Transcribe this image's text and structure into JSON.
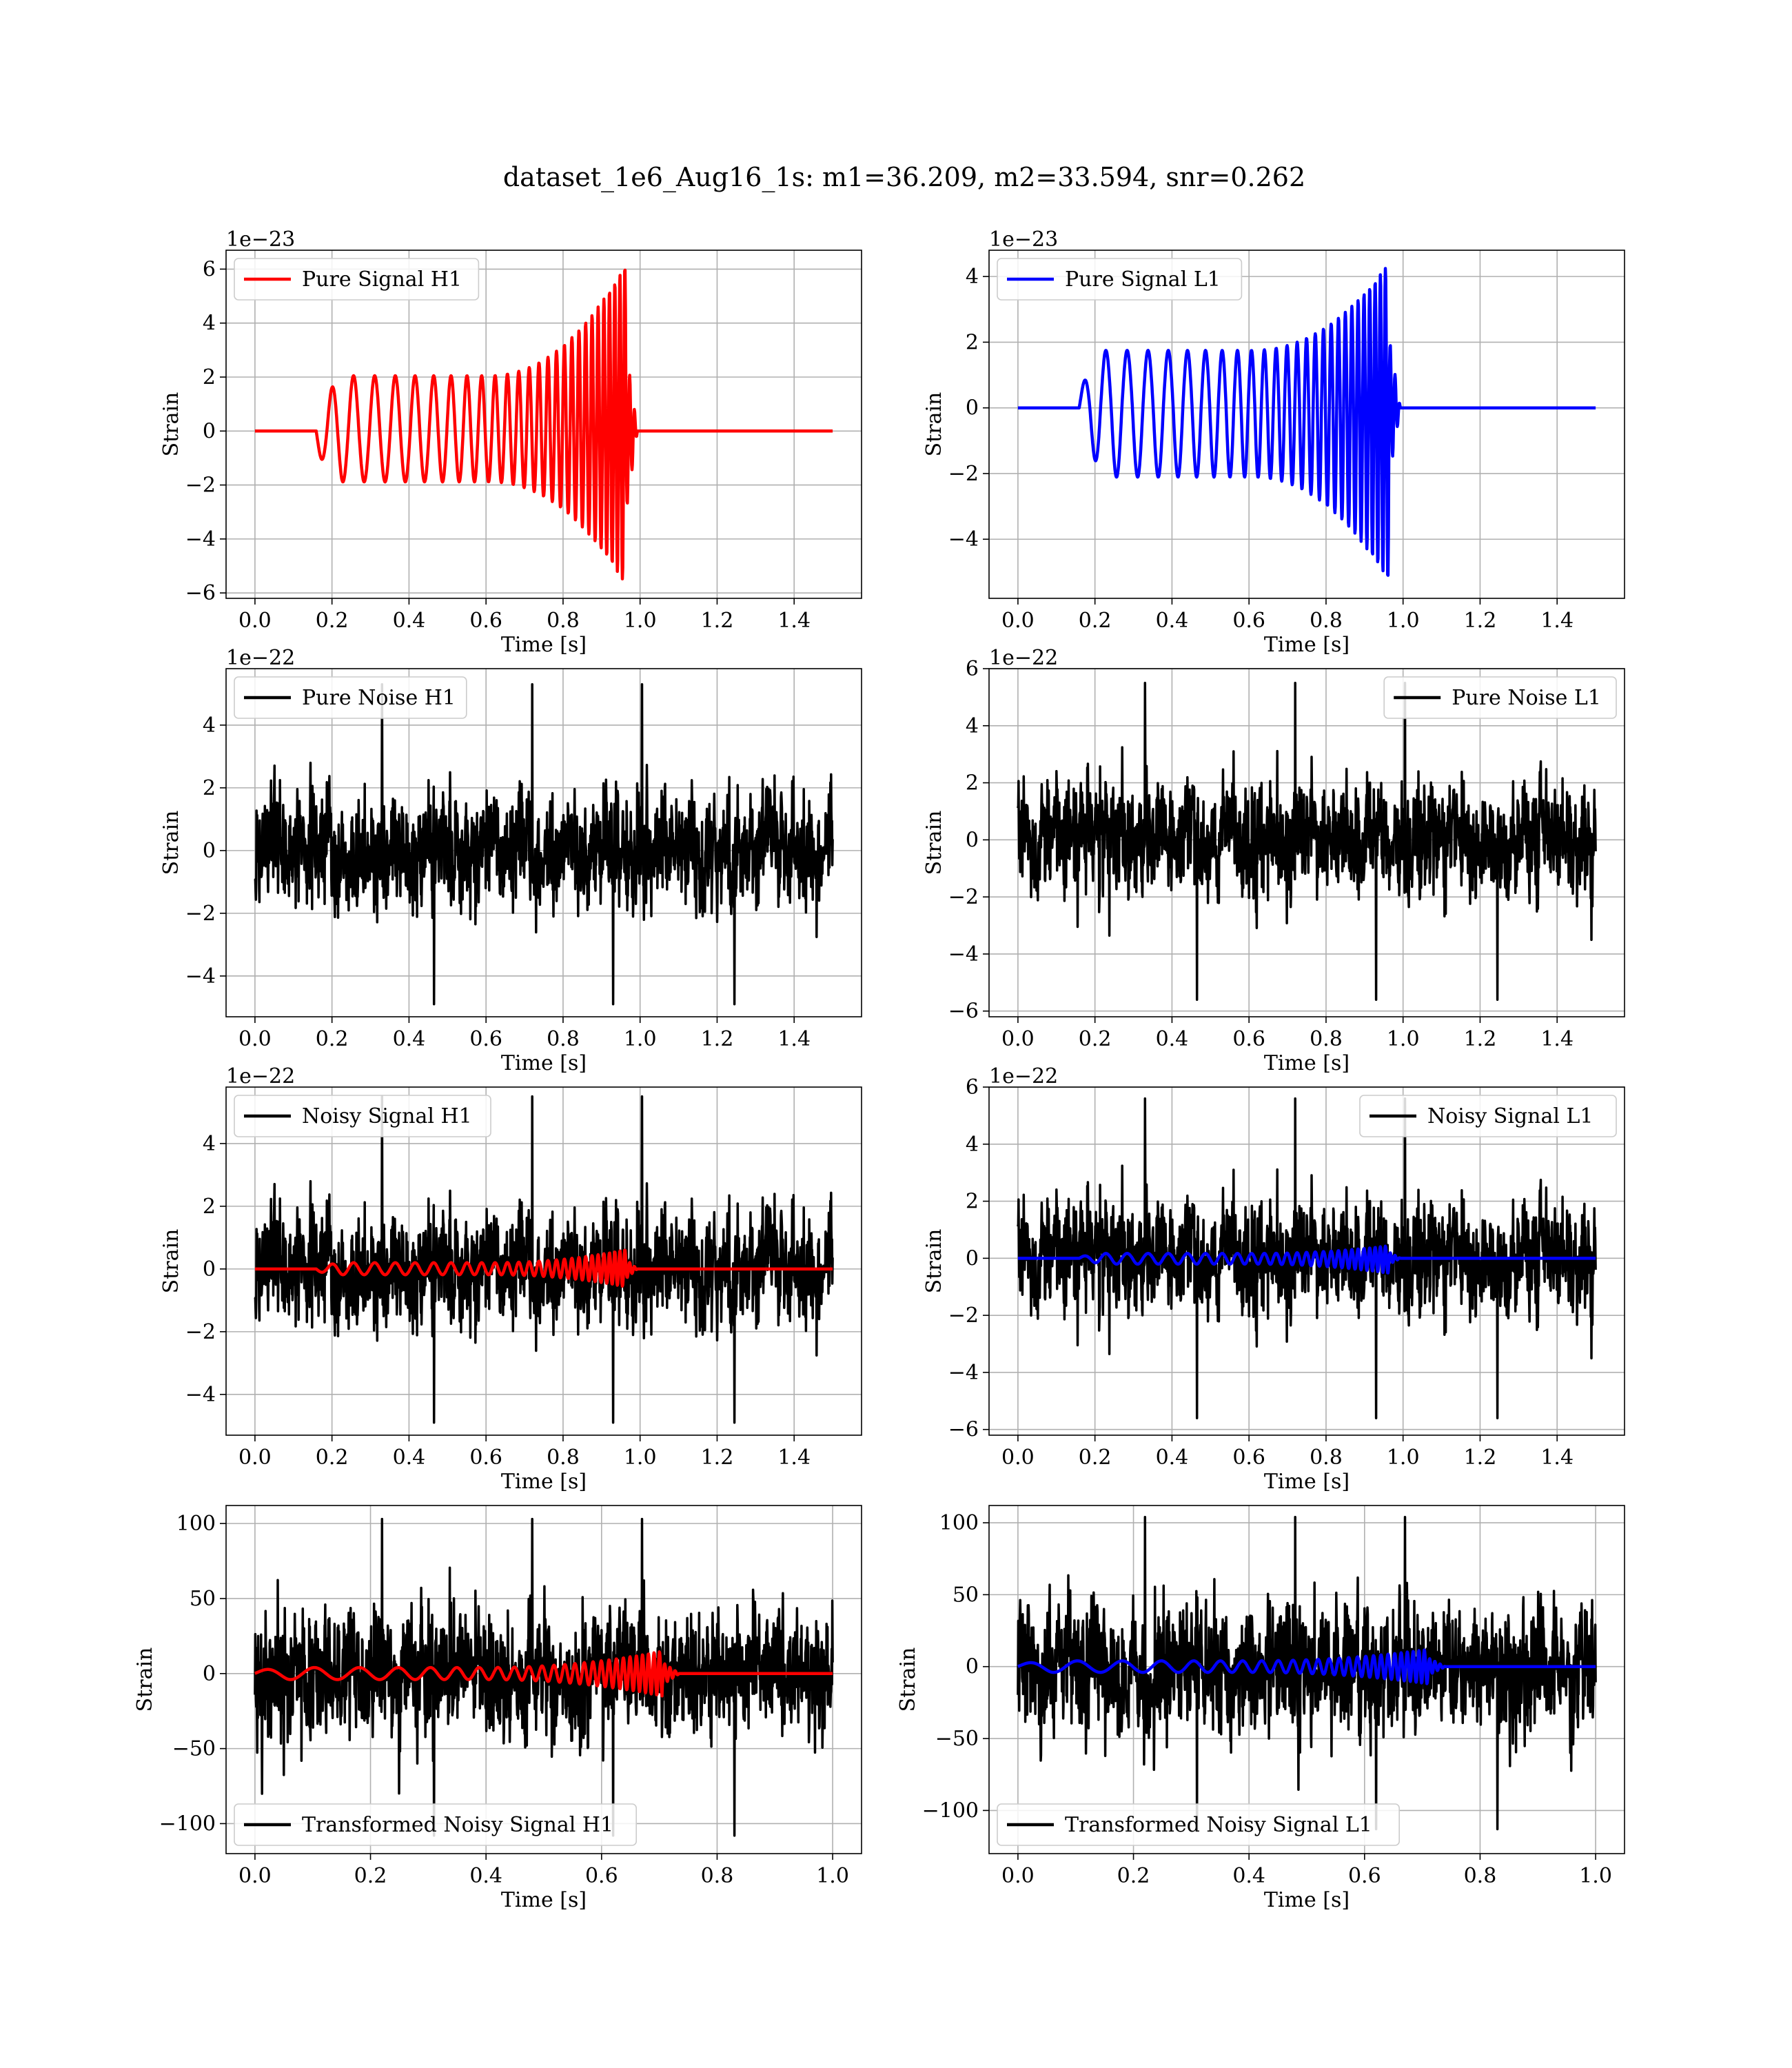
{
  "title": "dataset_1e6_Aug16_1s: m1=36.209, m2=33.594, snr=0.262",
  "colors": {
    "h1_signal": "#ff0000",
    "l1_signal": "#0000ff",
    "noise": "#000000"
  },
  "chart_data": [
    {
      "type": "line",
      "ylabel": "Strain",
      "xlabel": "Time [s]",
      "offset_text": "1e−23",
      "xlim": [
        -0.075,
        1.575
      ],
      "ylim": [
        -6.2,
        6.7
      ],
      "xticks": [
        0.0,
        0.2,
        0.4,
        0.6,
        0.8,
        1.0,
        1.2,
        1.4
      ],
      "xtick_labels": [
        "0.0",
        "0.2",
        "0.4",
        "0.6",
        "0.8",
        "1.0",
        "1.2",
        "1.4"
      ],
      "yticks": [
        -6,
        -4,
        -2,
        0,
        2,
        4,
        6
      ],
      "ytick_labels": [
        "−6",
        "−4",
        "−2",
        "0",
        "2",
        "4",
        "6"
      ],
      "legend": {
        "position": "top-left",
        "entries": [
          "Pure Signal H1"
        ]
      },
      "series": [
        {
          "name": "Pure Signal H1",
          "color": "#ff0000",
          "kind": "chirp",
          "x_start": 0.0,
          "x_end": 1.5,
          "onset": 0.16,
          "merger": 0.963,
          "start_amp": 0.9,
          "plateau_amp": 2.05,
          "peak_amp": 6.2,
          "trough_amp": -5.7,
          "f_start": 18,
          "f_end": 80,
          "phase": 3.14
        }
      ]
    },
    {
      "type": "line",
      "ylabel": "Strain",
      "xlabel": "Time [s]",
      "offset_text": "1e−23",
      "xlim": [
        -0.075,
        1.575
      ],
      "ylim": [
        -5.8,
        4.8
      ],
      "xticks": [
        0.0,
        0.2,
        0.4,
        0.6,
        0.8,
        1.0,
        1.2,
        1.4
      ],
      "xtick_labels": [
        "0.0",
        "0.2",
        "0.4",
        "0.6",
        "0.8",
        "1.0",
        "1.2",
        "1.4"
      ],
      "yticks": [
        -4,
        -2,
        0,
        2,
        4
      ],
      "ytick_labels": [
        "−4",
        "−2",
        "0",
        "2",
        "4"
      ],
      "legend": {
        "position": "top-left",
        "entries": [
          "Pure Signal L1"
        ]
      },
      "series": [
        {
          "name": "Pure Signal L1",
          "color": "#0000ff",
          "kind": "chirp",
          "x_start": 0.0,
          "x_end": 1.5,
          "onset": 0.16,
          "merger": 0.963,
          "start_amp": 0.6,
          "plateau_amp": 1.75,
          "peak_amp": 4.4,
          "trough_amp": -5.3,
          "f_start": 18,
          "f_end": 80,
          "phase": 0.0
        }
      ]
    },
    {
      "type": "line",
      "ylabel": "Strain",
      "xlabel": "Time [s]",
      "offset_text": "1e−22",
      "xlim": [
        -0.075,
        1.575
      ],
      "ylim": [
        -5.3,
        5.8
      ],
      "xticks": [
        0.0,
        0.2,
        0.4,
        0.6,
        0.8,
        1.0,
        1.2,
        1.4
      ],
      "xtick_labels": [
        "0.0",
        "0.2",
        "0.4",
        "0.6",
        "0.8",
        "1.0",
        "1.2",
        "1.4"
      ],
      "yticks": [
        -4,
        -2,
        0,
        2,
        4
      ],
      "ytick_labels": [
        "−4",
        "−2",
        "0",
        "2",
        "4"
      ],
      "legend": {
        "position": "top-left",
        "entries": [
          "Pure Noise H1"
        ]
      },
      "series": [
        {
          "name": "Pure Noise H1",
          "color": "#000000",
          "kind": "noise",
          "x_start": 0.0,
          "x_end": 1.5,
          "sigma": 1.25,
          "max": 5.3,
          "min": -4.9,
          "seed": 11
        }
      ]
    },
    {
      "type": "line",
      "ylabel": "Strain",
      "xlabel": "Time [s]",
      "offset_text": "1e−22",
      "xlim": [
        -0.075,
        1.575
      ],
      "ylim": [
        -6.2,
        6.0
      ],
      "xticks": [
        0.0,
        0.2,
        0.4,
        0.6,
        0.8,
        1.0,
        1.2,
        1.4
      ],
      "xtick_labels": [
        "0.0",
        "0.2",
        "0.4",
        "0.6",
        "0.8",
        "1.0",
        "1.2",
        "1.4"
      ],
      "yticks": [
        -6,
        -4,
        -2,
        0,
        2,
        4,
        6
      ],
      "ytick_labels": [
        "−6",
        "−4",
        "−2",
        "0",
        "2",
        "4",
        "6"
      ],
      "legend": {
        "position": "top-right",
        "entries": [
          "Pure Noise L1"
        ]
      },
      "series": [
        {
          "name": "Pure Noise L1",
          "color": "#000000",
          "kind": "noise",
          "x_start": 0.0,
          "x_end": 1.5,
          "sigma": 1.35,
          "max": 5.5,
          "min": -5.6,
          "seed": 23
        }
      ]
    },
    {
      "type": "line",
      "ylabel": "Strain",
      "xlabel": "Time [s]",
      "offset_text": "1e−22",
      "xlim": [
        -0.075,
        1.575
      ],
      "ylim": [
        -5.3,
        5.8
      ],
      "xticks": [
        0.0,
        0.2,
        0.4,
        0.6,
        0.8,
        1.0,
        1.2,
        1.4
      ],
      "xtick_labels": [
        "0.0",
        "0.2",
        "0.4",
        "0.6",
        "0.8",
        "1.0",
        "1.2",
        "1.4"
      ],
      "yticks": [
        -4,
        -2,
        0,
        2,
        4
      ],
      "ytick_labels": [
        "−4",
        "−2",
        "0",
        "2",
        "4"
      ],
      "legend": {
        "position": "top-left",
        "entries": [
          "Noisy Signal H1"
        ]
      },
      "series": [
        {
          "name": "Noisy Signal H1",
          "color": "#000000",
          "kind": "noise",
          "x_start": 0.0,
          "x_end": 1.5,
          "sigma": 1.25,
          "max": 5.5,
          "min": -4.9,
          "seed": 11
        },
        {
          "color": "#ff0000",
          "kind": "chirp",
          "x_start": 0.0,
          "x_end": 1.5,
          "onset": 0.16,
          "merger": 0.963,
          "start_amp": 0.09,
          "plateau_amp": 0.2,
          "peak_amp": 0.62,
          "trough_amp": -0.57,
          "f_start": 18,
          "f_end": 80,
          "phase": 3.14
        }
      ]
    },
    {
      "type": "line",
      "ylabel": "Strain",
      "xlabel": "Time [s]",
      "offset_text": "1e−22",
      "xlim": [
        -0.075,
        1.575
      ],
      "ylim": [
        -6.2,
        6.0
      ],
      "xticks": [
        0.0,
        0.2,
        0.4,
        0.6,
        0.8,
        1.0,
        1.2,
        1.4
      ],
      "xtick_labels": [
        "0.0",
        "0.2",
        "0.4",
        "0.6",
        "0.8",
        "1.0",
        "1.2",
        "1.4"
      ],
      "yticks": [
        -6,
        -4,
        -2,
        0,
        2,
        4,
        6
      ],
      "ytick_labels": [
        "−6",
        "−4",
        "−2",
        "0",
        "2",
        "4",
        "6"
      ],
      "legend": {
        "position": "top-right",
        "entries": [
          "Noisy Signal L1"
        ]
      },
      "series": [
        {
          "name": "Noisy Signal L1",
          "color": "#000000",
          "kind": "noise",
          "x_start": 0.0,
          "x_end": 1.5,
          "sigma": 1.35,
          "max": 5.6,
          "min": -5.6,
          "seed": 23
        },
        {
          "color": "#0000ff",
          "kind": "chirp",
          "x_start": 0.0,
          "x_end": 1.5,
          "onset": 0.16,
          "merger": 0.963,
          "start_amp": 0.06,
          "plateau_amp": 0.17,
          "peak_amp": 0.44,
          "trough_amp": -0.53,
          "f_start": 18,
          "f_end": 80,
          "phase": 0.0
        }
      ]
    },
    {
      "type": "line",
      "ylabel": "Strain",
      "xlabel": "Time [s]",
      "offset_text": "",
      "xlim": [
        -0.05,
        1.05
      ],
      "ylim": [
        -120,
        112
      ],
      "xticks": [
        0.0,
        0.2,
        0.4,
        0.6,
        0.8,
        1.0
      ],
      "xtick_labels": [
        "0.0",
        "0.2",
        "0.4",
        "0.6",
        "0.8",
        "1.0"
      ],
      "yticks": [
        -100,
        -50,
        0,
        50,
        100
      ],
      "ytick_labels": [
        "−100",
        "−50",
        "0",
        "50",
        "100"
      ],
      "legend": {
        "position": "bottom-left",
        "entries": [
          "Transformed Noisy Signal H1"
        ]
      },
      "series": [
        {
          "name": "Transformed Noisy Signal H1",
          "color": "#000000",
          "kind": "noise",
          "x_start": 0.0,
          "x_end": 1.0,
          "sigma": 30,
          "max": 103,
          "min": -108,
          "seed": 37
        },
        {
          "color": "#ff0000",
          "kind": "chirp",
          "x_start": 0.0,
          "x_end": 1.0,
          "onset": 0.0,
          "merger": 0.705,
          "start_amp": 2,
          "plateau_amp": 4,
          "peak_amp": 15,
          "trough_amp": -15,
          "f_start": 12,
          "f_end": 110,
          "phase": 0.0
        }
      ]
    },
    {
      "type": "line",
      "ylabel": "Strain",
      "xlabel": "Time [s]",
      "offset_text": "",
      "xlim": [
        -0.05,
        1.05
      ],
      "ylim": [
        -130,
        112
      ],
      "xticks": [
        0.0,
        0.2,
        0.4,
        0.6,
        0.8,
        1.0
      ],
      "xtick_labels": [
        "0.0",
        "0.2",
        "0.4",
        "0.6",
        "0.8",
        "1.0"
      ],
      "yticks": [
        -100,
        -50,
        0,
        50,
        100
      ],
      "ytick_labels": [
        "−100",
        "−50",
        "0",
        "50",
        "100"
      ],
      "legend": {
        "position": "bottom-left",
        "entries": [
          "Transformed Noisy Signal L1"
        ]
      },
      "series": [
        {
          "name": "Transformed Noisy Signal L1",
          "color": "#000000",
          "kind": "noise",
          "x_start": 0.0,
          "x_end": 1.0,
          "sigma": 30,
          "max": 104,
          "min": -113,
          "seed": 53
        },
        {
          "color": "#0000ff",
          "kind": "chirp",
          "x_start": 0.0,
          "x_end": 1.0,
          "onset": 0.0,
          "merger": 0.71,
          "start_amp": 2,
          "plateau_amp": 4,
          "peak_amp": 12,
          "trough_amp": -12,
          "f_start": 12,
          "f_end": 110,
          "phase": 0.0
        }
      ]
    }
  ]
}
